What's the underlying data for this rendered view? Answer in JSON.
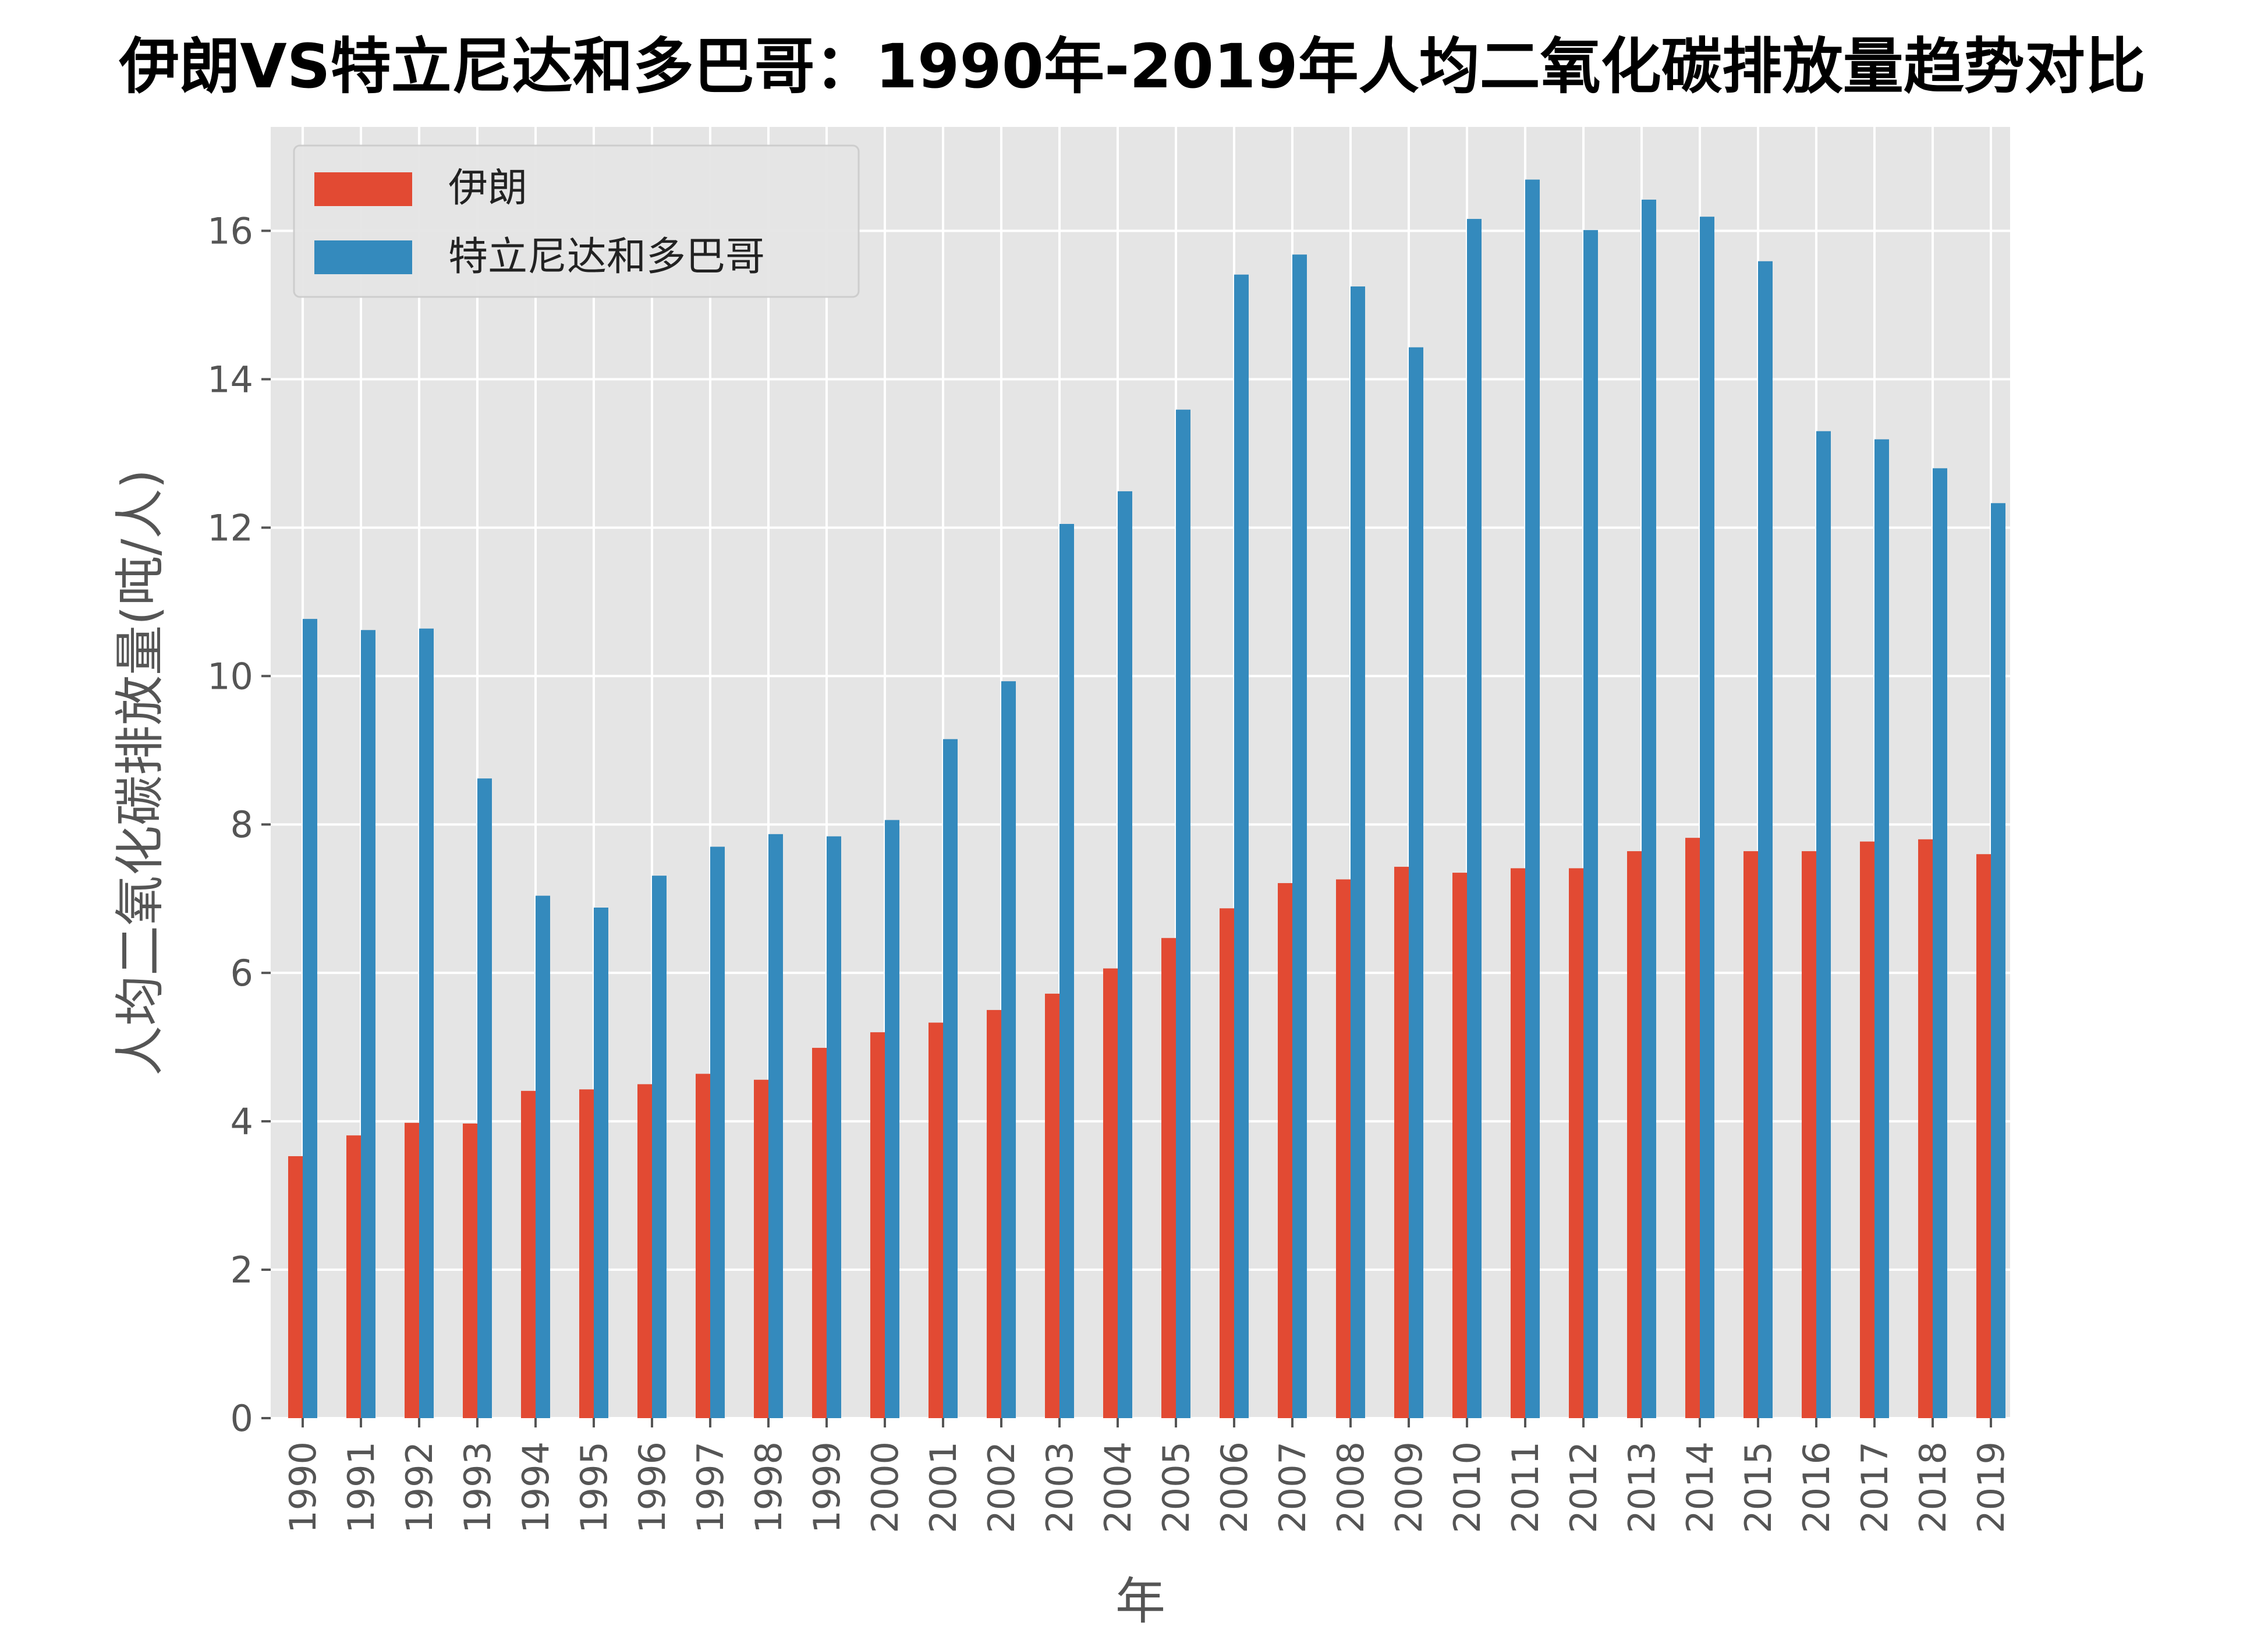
{
  "chart_data": {
    "type": "bar",
    "title": "伊朗VS特立尼达和多巴哥：1990年-2019年人均二氧化碳排放量趋势对比",
    "xlabel": "年",
    "ylabel": "人均二氧化碳排放量(吨/人)",
    "ylim": [
      0,
      17.4
    ],
    "yticks": [
      0,
      2,
      4,
      6,
      8,
      10,
      12,
      14,
      16
    ],
    "grid": true,
    "legend_position": "top-left",
    "categories": [
      "1990",
      "1991",
      "1992",
      "1993",
      "1994",
      "1995",
      "1996",
      "1997",
      "1998",
      "1999",
      "2000",
      "2001",
      "2002",
      "2003",
      "2004",
      "2005",
      "2006",
      "2007",
      "2008",
      "2009",
      "2010",
      "2011",
      "2012",
      "2013",
      "2014",
      "2015",
      "2016",
      "2017",
      "2018",
      "2019"
    ],
    "series": [
      {
        "name": "伊朗",
        "color": "#e24a33",
        "values": [
          3.53,
          3.81,
          3.98,
          3.97,
          4.41,
          4.43,
          4.5,
          4.64,
          4.56,
          4.99,
          5.2,
          5.33,
          5.5,
          5.72,
          6.06,
          6.47,
          6.87,
          7.21,
          7.26,
          7.43,
          7.35,
          7.41,
          7.41,
          7.64,
          7.82,
          7.64,
          7.64,
          7.77,
          7.8,
          7.6
        ]
      },
      {
        "name": "特立尼达和多巴哥",
        "color": "#348abd",
        "values": [
          10.77,
          10.62,
          10.64,
          8.62,
          7.04,
          6.88,
          7.31,
          7.7,
          7.87,
          7.84,
          8.06,
          9.15,
          9.93,
          12.05,
          12.49,
          13.59,
          15.41,
          15.68,
          15.25,
          14.43,
          16.16,
          16.69,
          16.01,
          16.42,
          16.19,
          15.59,
          13.3,
          13.19,
          12.8,
          12.33
        ]
      }
    ]
  }
}
